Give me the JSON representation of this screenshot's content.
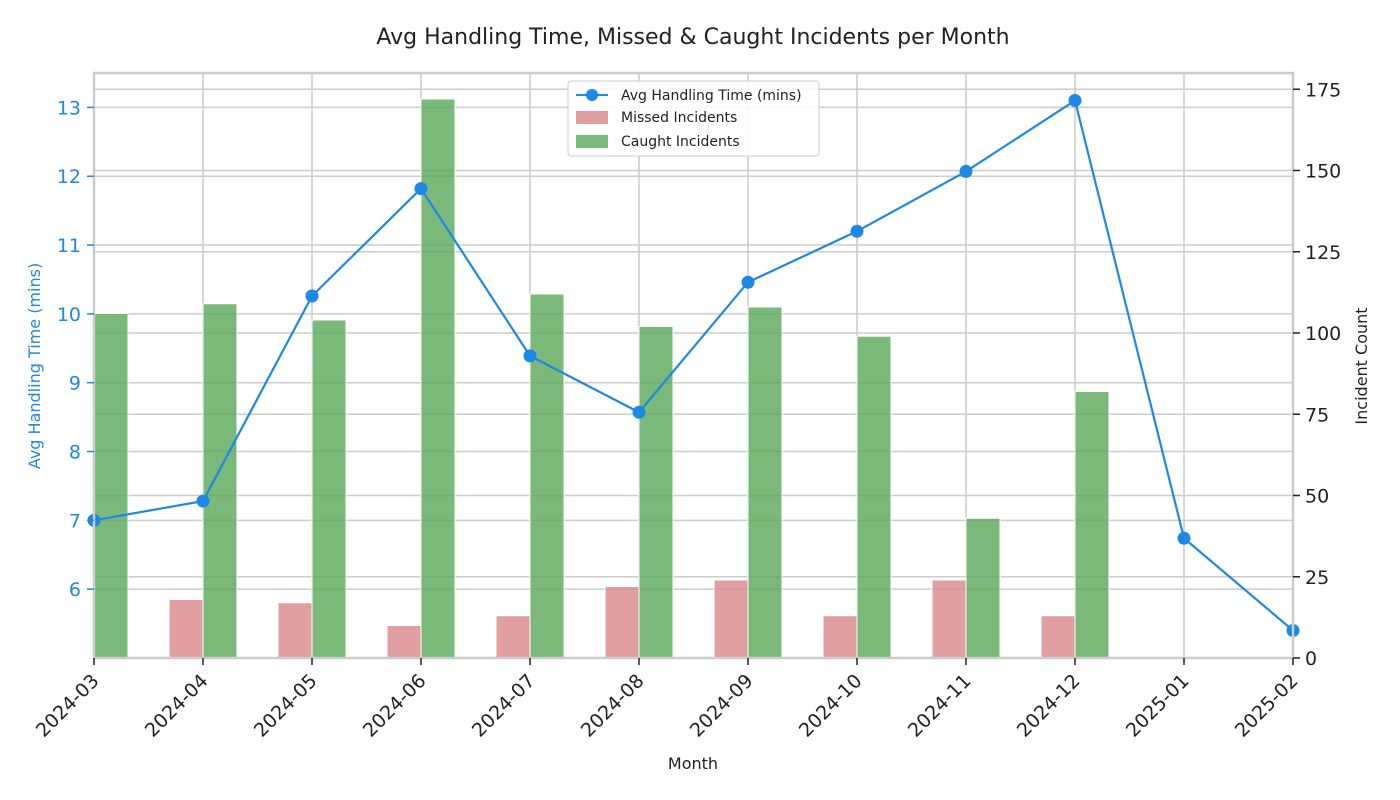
{
  "chart_data": {
    "type": "bar+line",
    "title": "Avg Handling Time, Missed & Caught Incidents per Month",
    "xlabel": "Month",
    "ylabel_left": "Avg Handling Time (mins)",
    "ylabel_right": "Incident Count",
    "categories": [
      "2024-03",
      "2024-04",
      "2024-05",
      "2024-06",
      "2024-07",
      "2024-08",
      "2024-09",
      "2024-10",
      "2024-11",
      "2024-12",
      "2025-01",
      "2025-02"
    ],
    "ylim_left": [
      5.0,
      13.5
    ],
    "ylim_right": [
      0,
      180
    ],
    "yticks_left": [
      6,
      7,
      8,
      9,
      10,
      11,
      12,
      13
    ],
    "yticks_right": [
      0,
      25,
      50,
      75,
      100,
      125,
      150,
      175
    ],
    "grid": true,
    "legend_position": "top-center",
    "series": [
      {
        "name": "Avg Handling Time (mins)",
        "kind": "line",
        "axis": "left",
        "color": "#1e88e5",
        "values": [
          7.0,
          7.28,
          10.26,
          11.82,
          9.39,
          8.57,
          10.46,
          11.2,
          12.07,
          13.1,
          6.74,
          5.4
        ]
      },
      {
        "name": "Missed Incidents",
        "kind": "bar",
        "axis": "right",
        "color": "#d9878a",
        "values": [
          0,
          18,
          17,
          10,
          13,
          22,
          24,
          13,
          24,
          13,
          0,
          0
        ]
      },
      {
        "name": "Caught Incidents",
        "kind": "bar",
        "axis": "right",
        "color": "#5aa85a",
        "values": [
          106,
          109,
          104,
          172,
          112,
          102,
          108,
          99,
          43,
          82,
          0,
          0
        ]
      }
    ]
  }
}
